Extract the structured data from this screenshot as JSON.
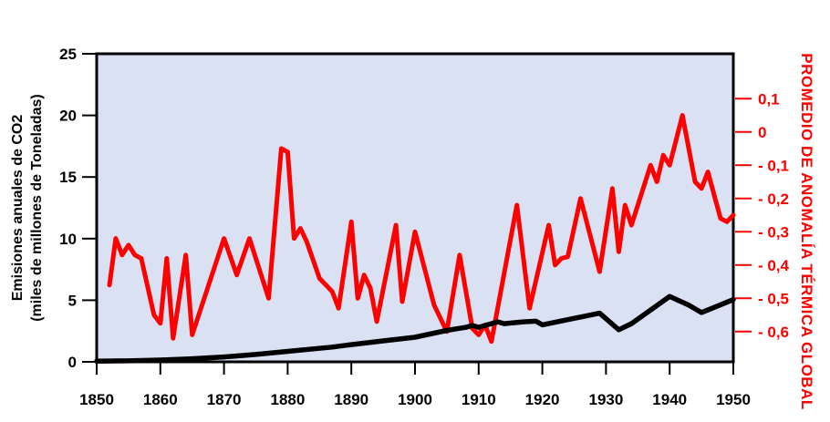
{
  "page": {
    "background": "#ffffff"
  },
  "chart_data": {
    "type": "line",
    "title": "",
    "plot_background": "#d9e1f2",
    "plot_border_color": "#000000",
    "x_axis": {
      "label": "",
      "range": [
        1850,
        1950
      ],
      "tick_color": "#000000",
      "ticks": [
        {
          "value": 1850,
          "label": "1850"
        },
        {
          "value": 1860,
          "label": "1860"
        },
        {
          "value": 1870,
          "label": "1870"
        },
        {
          "value": 1880,
          "label": "1880"
        },
        {
          "value": 1890,
          "label": "1890"
        },
        {
          "value": 1900,
          "label": "1900"
        },
        {
          "value": 1910,
          "label": "1910"
        },
        {
          "value": 1920,
          "label": "1920"
        },
        {
          "value": 1930,
          "label": "1930"
        },
        {
          "value": 1940,
          "label": "1940"
        },
        {
          "value": 1950,
          "label": "1950"
        }
      ]
    },
    "left_axis": {
      "title_line1": "Emisiones anuales de CO2",
      "title_line2": "(miles de millones de Toneladas)",
      "color": "#000000",
      "range": [
        0,
        25
      ],
      "ticks": [
        {
          "value": 0,
          "label": "0"
        },
        {
          "value": 5,
          "label": "5"
        },
        {
          "value": 10,
          "label": "10"
        },
        {
          "value": 15,
          "label": "15"
        },
        {
          "value": 20,
          "label": "20"
        },
        {
          "value": 25,
          "label": "25"
        }
      ]
    },
    "right_axis": {
      "title": "PROMEDIO DE ANOMALÍA TÉRMICA GLOBAL",
      "color": "#fe0000",
      "range": [
        -0.691,
        0.235
      ],
      "ticks": [
        {
          "value": 0.1,
          "label": "0,1"
        },
        {
          "value": 0,
          "label": "0"
        },
        {
          "value": -0.1,
          "label": "- 0,1"
        },
        {
          "value": -0.2,
          "label": "- 0,2"
        },
        {
          "value": -0.3,
          "label": "- 0,3"
        },
        {
          "value": -0.4,
          "label": "- 0,4"
        },
        {
          "value": -0.5,
          "label": "- 0,5"
        },
        {
          "value": -0.6,
          "label": "- 0,6"
        }
      ]
    },
    "series": [
      {
        "id": "thermal-anomaly-line",
        "name": "Promedio de anomalía térmica global",
        "axis": "right",
        "color": "#fe0000",
        "stroke_width": 5,
        "points": [
          [
            1852,
            -0.46
          ],
          [
            1853,
            -0.32
          ],
          [
            1854,
            -0.37
          ],
          [
            1855,
            -0.34
          ],
          [
            1856,
            -0.37
          ],
          [
            1857,
            -0.38
          ],
          [
            1859,
            -0.55
          ],
          [
            1860,
            -0.575
          ],
          [
            1861,
            -0.38
          ],
          [
            1862,
            -0.62
          ],
          [
            1864,
            -0.37
          ],
          [
            1865,
            -0.61
          ],
          [
            1870,
            -0.32
          ],
          [
            1872,
            -0.43
          ],
          [
            1874,
            -0.32
          ],
          [
            1877,
            -0.5
          ],
          [
            1879,
            -0.05
          ],
          [
            1880,
            -0.06
          ],
          [
            1881,
            -0.32
          ],
          [
            1882,
            -0.29
          ],
          [
            1883,
            -0.33
          ],
          [
            1885,
            -0.44
          ],
          [
            1887,
            -0.48
          ],
          [
            1888,
            -0.53
          ],
          [
            1890,
            -0.27
          ],
          [
            1891,
            -0.5
          ],
          [
            1892,
            -0.43
          ],
          [
            1893,
            -0.47
          ],
          [
            1894,
            -0.57
          ],
          [
            1897,
            -0.28
          ],
          [
            1898,
            -0.51
          ],
          [
            1900,
            -0.3
          ],
          [
            1903,
            -0.52
          ],
          [
            1905,
            -0.6
          ],
          [
            1907,
            -0.37
          ],
          [
            1909,
            -0.59
          ],
          [
            1910,
            -0.61
          ],
          [
            1911,
            -0.58
          ],
          [
            1912,
            -0.63
          ],
          [
            1916,
            -0.22
          ],
          [
            1918,
            -0.53
          ],
          [
            1921,
            -0.28
          ],
          [
            1922,
            -0.4
          ],
          [
            1923,
            -0.38
          ],
          [
            1924,
            -0.375
          ],
          [
            1926,
            -0.2
          ],
          [
            1929,
            -0.42
          ],
          [
            1931,
            -0.17
          ],
          [
            1932,
            -0.36
          ],
          [
            1933,
            -0.22
          ],
          [
            1934,
            -0.28
          ],
          [
            1937,
            -0.1
          ],
          [
            1938,
            -0.15
          ],
          [
            1939,
            -0.07
          ],
          [
            1940,
            -0.1
          ],
          [
            1942,
            0.05
          ],
          [
            1944,
            -0.15
          ],
          [
            1945,
            -0.17
          ],
          [
            1946,
            -0.12
          ],
          [
            1948,
            -0.26
          ],
          [
            1949,
            -0.27
          ],
          [
            1950,
            -0.25
          ]
        ]
      },
      {
        "id": "co2-emissions-line",
        "name": "Emisiones anuales de CO2",
        "axis": "left",
        "color": "#000000",
        "stroke_width": 5.5,
        "points": [
          [
            1850,
            0.05
          ],
          [
            1855,
            0.08
          ],
          [
            1860,
            0.15
          ],
          [
            1865,
            0.25
          ],
          [
            1870,
            0.4
          ],
          [
            1875,
            0.6
          ],
          [
            1880,
            0.85
          ],
          [
            1887,
            1.2
          ],
          [
            1890,
            1.4
          ],
          [
            1895,
            1.7
          ],
          [
            1900,
            2.0
          ],
          [
            1905,
            2.55
          ],
          [
            1908,
            2.8
          ],
          [
            1909,
            2.95
          ],
          [
            1910,
            2.8
          ],
          [
            1913,
            3.25
          ],
          [
            1914,
            3.1
          ],
          [
            1917,
            3.25
          ],
          [
            1919,
            3.3
          ],
          [
            1920,
            3.0
          ],
          [
            1929,
            3.95
          ],
          [
            1932,
            2.6
          ],
          [
            1934,
            3.1
          ],
          [
            1940,
            5.3
          ],
          [
            1943,
            4.6
          ],
          [
            1945,
            4.0
          ],
          [
            1950,
            5.05
          ]
        ]
      }
    ]
  }
}
